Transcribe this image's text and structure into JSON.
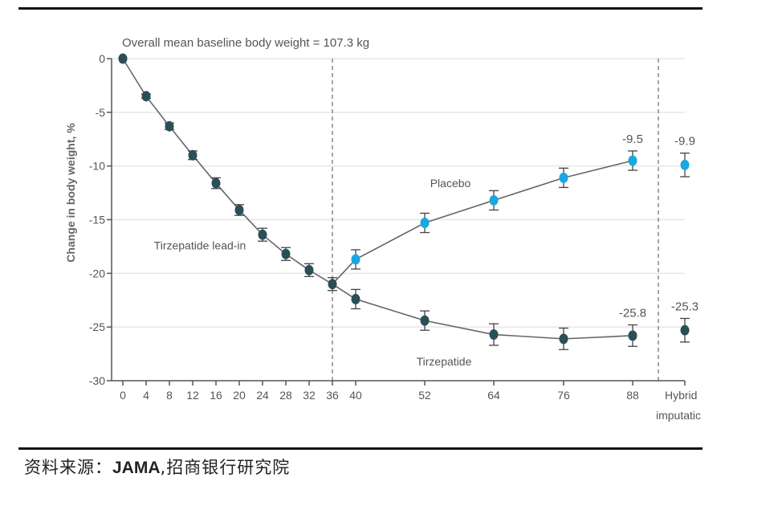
{
  "chart_data": {
    "type": "line",
    "title": "Overall mean baseline body weight = 107.3 kg",
    "xlabel": "",
    "ylabel": "Change in body weight, %",
    "ylim": [
      -30,
      0
    ],
    "yticks": [
      0,
      -5,
      -10,
      -15,
      -20,
      -25,
      -30
    ],
    "ytick_labels": [
      "0",
      "-5",
      "-10",
      "-15",
      "-20",
      "-25",
      "-30"
    ],
    "xticks": [
      0,
      4,
      8,
      12,
      16,
      20,
      24,
      28,
      32,
      36,
      40,
      52,
      64,
      76,
      88
    ],
    "xtick_labels": [
      "0",
      "4",
      "8",
      "12",
      "16",
      "20",
      "24",
      "28",
      "32",
      "36",
      "40",
      "52",
      "64",
      "76",
      "88"
    ],
    "extra_category": {
      "label_line1": "Hybrid",
      "label_line2": "imputatic"
    },
    "grid": true,
    "vertical_reference_lines": [
      36,
      "between 88 and Hybrid imputation"
    ],
    "series": [
      {
        "name": "Tirzepatide lead-in",
        "color": "#2b4f57",
        "x": [
          0,
          4,
          8,
          12,
          16,
          20,
          24,
          28,
          32,
          36
        ],
        "values": [
          0,
          -3.5,
          -6.3,
          -9.0,
          -11.6,
          -14.1,
          -16.4,
          -18.2,
          -19.7,
          -21.0
        ],
        "error": [
          0,
          0.2,
          0.3,
          0.4,
          0.5,
          0.5,
          0.6,
          0.6,
          0.6,
          0.6
        ]
      },
      {
        "name": "Placebo",
        "color": "#1aa7e0",
        "x": [
          36,
          40,
          52,
          64,
          76,
          88
        ],
        "values": [
          -21.0,
          -18.7,
          -15.3,
          -13.2,
          -11.1,
          -9.5
        ],
        "error": [
          0.6,
          0.9,
          0.9,
          0.9,
          0.9,
          0.9
        ],
        "hybrid_imputation": {
          "value": -9.9,
          "error": 1.1
        },
        "end_label": "-9.5",
        "hybrid_label": "-9.9"
      },
      {
        "name": "Tirzepatide",
        "color": "#2b4f57",
        "x": [
          36,
          40,
          52,
          64,
          76,
          88
        ],
        "values": [
          -21.0,
          -22.4,
          -24.4,
          -25.7,
          -26.1,
          -25.8
        ],
        "error": [
          0.6,
          0.9,
          0.9,
          1.0,
          1.0,
          1.0
        ],
        "hybrid_imputation": {
          "value": -25.3,
          "error": 1.1
        },
        "end_label": "-25.8",
        "hybrid_label": "-25.3"
      }
    ],
    "annotations": [
      {
        "text": "Tirzepatide lead-in",
        "x": 12.5,
        "y": -17.4
      },
      {
        "text": "Placebo",
        "x": 56.5,
        "y": -11.6
      },
      {
        "text": "Tirzepatide",
        "x": 54,
        "y": -28.2
      }
    ]
  },
  "footer": {
    "source_prefix": "资料来源：",
    "source_brand": "JAMA",
    "source_suffix": ",招商银行研究院"
  }
}
